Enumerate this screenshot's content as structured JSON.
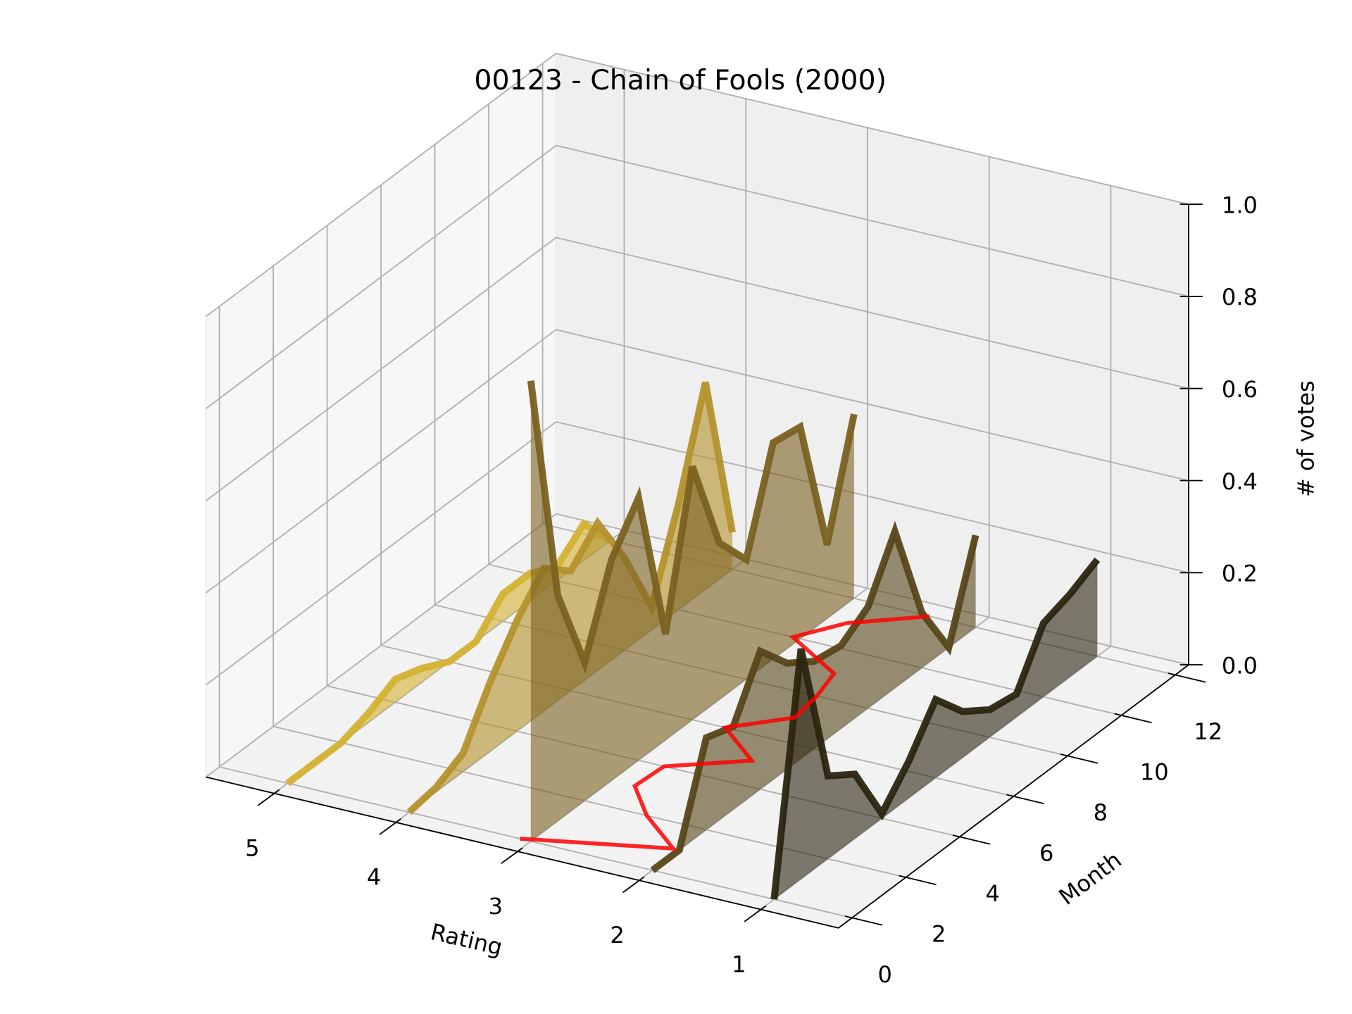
{
  "chart_data": {
    "type": "line3d",
    "title": "00123 - Chain of Fools (2000)",
    "xlabel": "Rating",
    "ylabel": "Month",
    "zlabel": "# of votes",
    "xlim": [
      0.36,
      5.56
    ],
    "ylim": [
      -0.5,
      12.5
    ],
    "zlim": [
      0,
      1
    ],
    "xticks": [
      1,
      2,
      3,
      4,
      5
    ],
    "yticks": [
      0,
      2,
      4,
      6,
      8,
      10,
      12
    ],
    "zticks": [
      {
        "value": 0,
        "label": "0.0"
      },
      {
        "value": 0.2,
        "label": "0.2"
      },
      {
        "value": 0.4,
        "label": "0.4"
      },
      {
        "value": 0.6,
        "label": "0.6"
      },
      {
        "value": 0.8,
        "label": "0.8"
      },
      {
        "value": 1,
        "label": "1.0"
      }
    ],
    "grid": true,
    "months": [
      0,
      1,
      2,
      3,
      4,
      5,
      6,
      7,
      8,
      9,
      10,
      11,
      12
    ],
    "series": [
      {
        "rating": 5,
        "color": "#d4b132",
        "values": [
          0,
          0,
          0,
          0.02,
          0.05,
          0.03,
          0,
          0,
          0.06,
          0.06,
          0.03,
          0.08,
          0
        ]
      },
      {
        "rating": 4,
        "color": "#b4912c",
        "values": [
          0,
          0.01,
          0.04,
          0.15,
          0.24,
          0.31,
          0.26,
          0.32,
          0.2,
          0.05,
          0.23,
          0.45,
          0.08
        ]
      },
      {
        "rating": 3,
        "color": "#7a6121",
        "values": [
          1.0,
          0.49,
          0.3,
          0.48,
          0.57,
          0.23,
          0.55,
          0.34,
          0.26,
          0.47,
          0.46,
          0.16,
          0.4
        ]
      },
      {
        "rating": 2,
        "color": "#574619",
        "values": [
          0,
          0,
          0.2,
          0.18,
          0.3,
          0.23,
          0.19,
          0.18,
          0.22,
          0.34,
          0.12,
          0,
          0.2
        ]
      },
      {
        "rating": 1,
        "color": "#2b2510",
        "values": [
          0,
          0.5,
          0.18,
          0.14,
          0.01,
          0.08,
          0.17,
          0.1,
          0.06,
          0.05,
          0.16,
          0.18,
          0.21
        ]
      }
    ],
    "mean_rating": {
      "color": "#ff0000",
      "ratings": [
        3.09,
        2.05,
        2.49,
        2.81,
        2.79,
        2.29,
        2.73,
        2.38,
        2.42,
        2.5,
        3.06,
        2.84,
        2.38
      ]
    }
  }
}
